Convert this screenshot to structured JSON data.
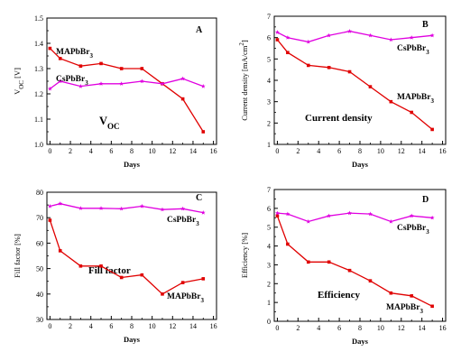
{
  "colors": {
    "mapbbr3": "#e00000",
    "cspbbr3": "#e000e0",
    "axis": "#000000"
  },
  "chart_data": [
    {
      "type": "line",
      "panel_letter": "A",
      "inner_label": {
        "main": "V",
        "sub": "OC"
      },
      "ylabel": {
        "main": "V",
        "sub": "OC",
        "rest": " [V]"
      },
      "xlabel": "Days",
      "xlim": [
        -0.3,
        16.3
      ],
      "ylim": [
        1.0,
        1.5
      ],
      "xticks": [
        0,
        2,
        4,
        6,
        8,
        10,
        12,
        14,
        16
      ],
      "yticks": [
        "1.0",
        "1.1",
        "1.2",
        "1.3",
        "1.4",
        "1.5"
      ],
      "series": [
        {
          "name": "MAPbBr3",
          "label_main": "MAPbBr",
          "label_sub": "3",
          "color_key": "mapbbr3",
          "marker": "square",
          "x": [
            0,
            1,
            3,
            5,
            7,
            9,
            11,
            13,
            15
          ],
          "y": [
            1.38,
            1.34,
            1.31,
            1.32,
            1.3,
            1.3,
            1.24,
            1.18,
            1.05
          ]
        },
        {
          "name": "CsPbBr3",
          "label_main": "CsPbBr",
          "label_sub": "3",
          "color_key": "cspbbr3",
          "marker": "star",
          "x": [
            0,
            1,
            3,
            5,
            7,
            9,
            11,
            13,
            15
          ],
          "y": [
            1.22,
            1.25,
            1.23,
            1.24,
            1.24,
            1.25,
            1.24,
            1.26,
            1.23
          ]
        }
      ]
    },
    {
      "type": "line",
      "panel_letter": "B",
      "inner_label": {
        "main": "Current density",
        "sub": ""
      },
      "ylabel": {
        "main": "Current density [mA/cm",
        "sup": "2",
        "rest": "]"
      },
      "xlabel": "Days",
      "xlim": [
        -0.3,
        16.3
      ],
      "ylim": [
        1,
        7
      ],
      "xticks": [
        0,
        2,
        4,
        6,
        8,
        10,
        12,
        14,
        16
      ],
      "yticks": [
        "1",
        "2",
        "3",
        "4",
        "5",
        "6",
        "7"
      ],
      "series": [
        {
          "name": "MAPbBr3",
          "label_main": "MAPbBr",
          "label_sub": "3",
          "color_key": "mapbbr3",
          "marker": "square",
          "x": [
            0,
            1,
            3,
            5,
            7,
            9,
            11,
            13,
            15
          ],
          "y": [
            5.9,
            5.3,
            4.7,
            4.6,
            4.4,
            3.7,
            3.0,
            2.5,
            1.7
          ]
        },
        {
          "name": "CsPbBr3",
          "label_main": "CsPbBr",
          "label_sub": "3",
          "color_key": "cspbbr3",
          "marker": "star",
          "x": [
            0,
            1,
            3,
            5,
            7,
            9,
            11,
            13,
            15
          ],
          "y": [
            6.25,
            6.0,
            5.8,
            6.1,
            6.3,
            6.1,
            5.9,
            6.0,
            6.1
          ]
        }
      ]
    },
    {
      "type": "line",
      "panel_letter": "C",
      "inner_label": {
        "main": "Fill factor",
        "sub": ""
      },
      "ylabel": {
        "main": "Fill factor [%]",
        "rest": ""
      },
      "xlabel": "Days",
      "xlim": [
        -0.3,
        16.3
      ],
      "ylim": [
        30,
        80
      ],
      "xticks": [
        0,
        2,
        4,
        6,
        8,
        10,
        12,
        14,
        16
      ],
      "yticks": [
        "30",
        "40",
        "50",
        "60",
        "70",
        "80"
      ],
      "series": [
        {
          "name": "MAPbBr3",
          "label_main": "MAPbBr",
          "label_sub": "3",
          "color_key": "mapbbr3",
          "marker": "square",
          "x": [
            0,
            1,
            3,
            5,
            7,
            9,
            11,
            13,
            15
          ],
          "y": [
            69,
            57,
            51,
            51,
            46.5,
            47.5,
            40,
            44.5,
            46
          ]
        },
        {
          "name": "CsPbBr3",
          "label_main": "CsPbBr",
          "label_sub": "3",
          "color_key": "cspbbr3",
          "marker": "star",
          "x": [
            0,
            1,
            3,
            5,
            7,
            9,
            11,
            13,
            15
          ],
          "y": [
            74.5,
            75.5,
            73.7,
            73.7,
            73.5,
            74.5,
            73.2,
            73.5,
            72
          ]
        }
      ]
    },
    {
      "type": "line",
      "panel_letter": "D",
      "inner_label": {
        "main": "Efficiency",
        "sub": ""
      },
      "ylabel": {
        "main": "Efficiency [%]",
        "rest": ""
      },
      "xlabel": "Days",
      "xlim": [
        -0.3,
        16.3
      ],
      "ylim": [
        0,
        7
      ],
      "xticks": [
        0,
        2,
        4,
        6,
        8,
        10,
        12,
        14,
        16
      ],
      "yticks": [
        "0",
        "1",
        "2",
        "3",
        "4",
        "5",
        "6",
        "7"
      ],
      "series": [
        {
          "name": "MAPbBr3",
          "label_main": "MAPbBr",
          "label_sub": "3",
          "color_key": "mapbbr3",
          "marker": "square",
          "x": [
            0,
            1,
            3,
            5,
            7,
            9,
            11,
            13,
            15
          ],
          "y": [
            5.6,
            4.1,
            3.15,
            3.15,
            2.7,
            2.15,
            1.5,
            1.35,
            0.8
          ]
        },
        {
          "name": "CsPbBr3",
          "label_main": "CsPbBr",
          "label_sub": "3",
          "color_key": "cspbbr3",
          "marker": "star",
          "x": [
            0,
            1,
            3,
            5,
            7,
            9,
            11,
            13,
            15
          ],
          "y": [
            5.75,
            5.7,
            5.3,
            5.6,
            5.75,
            5.7,
            5.3,
            5.6,
            5.5
          ]
        }
      ]
    }
  ]
}
